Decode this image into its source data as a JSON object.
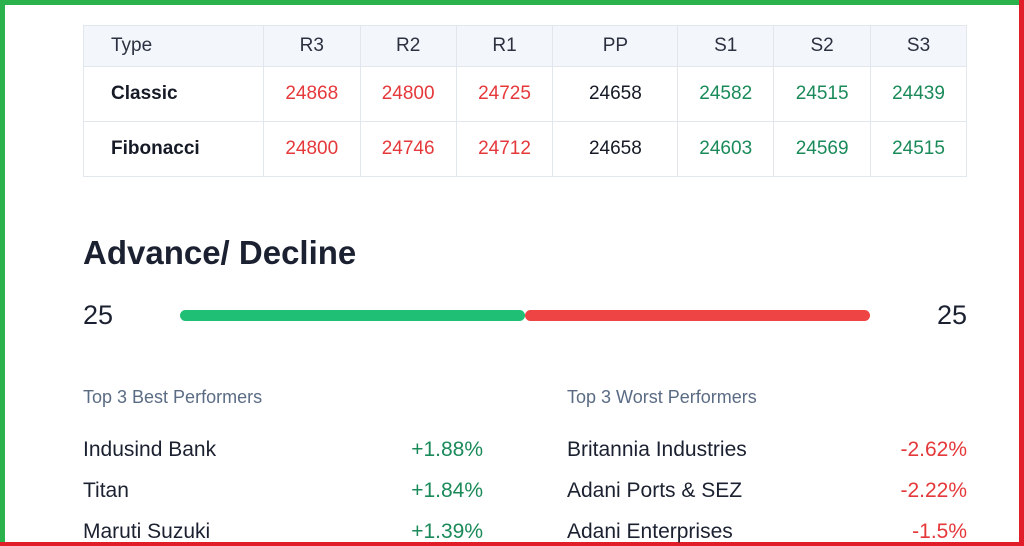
{
  "colors": {
    "green": "#1b8a5a",
    "red": "#e5383b",
    "frame_green": "#2bb24c",
    "frame_red": "#e21d2a",
    "bar_green": "#1fbf75",
    "bar_red": "#ef4444"
  },
  "pivot_table": {
    "columns": [
      "Type",
      "R3",
      "R2",
      "R1",
      "PP",
      "S1",
      "S2",
      "S3"
    ],
    "rows": [
      {
        "type": "Classic",
        "values": [
          "24868",
          "24800",
          "24725",
          "24658",
          "24582",
          "24515",
          "24439"
        ]
      },
      {
        "type": "Fibonacci",
        "values": [
          "24800",
          "24746",
          "24712",
          "24658",
          "24603",
          "24569",
          "24515"
        ]
      }
    ]
  },
  "advance_decline": {
    "title": "Advance/ Decline",
    "advances": "25",
    "declines": "25",
    "advance_fraction": 0.5
  },
  "best_performers": {
    "heading": "Top 3 Best Performers",
    "items": [
      {
        "name": "Indusind Bank",
        "change": "+1.88%"
      },
      {
        "name": "Titan",
        "change": "+1.84%"
      },
      {
        "name": "Maruti Suzuki",
        "change": "+1.39%"
      }
    ]
  },
  "worst_performers": {
    "heading": "Top 3 Worst Performers",
    "items": [
      {
        "name": "Britannia Industries",
        "change": "-2.62%"
      },
      {
        "name": "Adani Ports & SEZ",
        "change": "-2.22%"
      },
      {
        "name": "Adani Enterprises",
        "change": "-1.5%"
      }
    ]
  }
}
